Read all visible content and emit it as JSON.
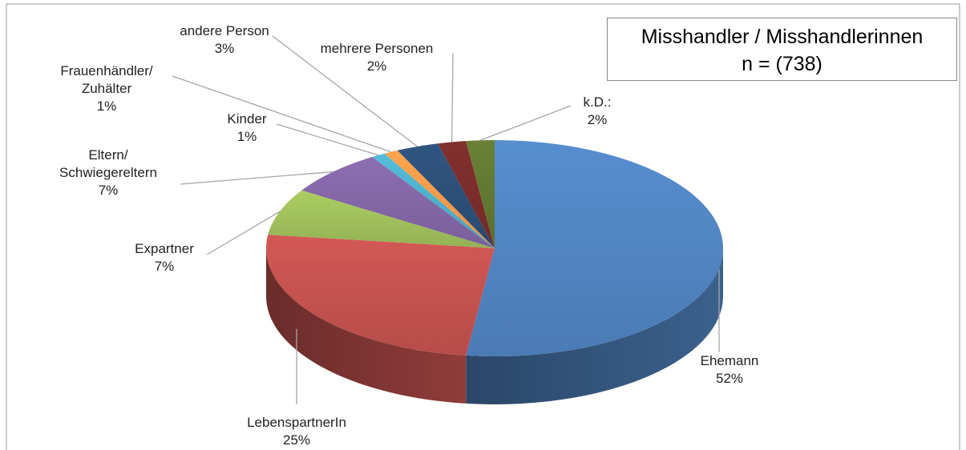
{
  "chart_data": {
    "type": "pie3d",
    "title": "Misshandler / Misshandlerinnen",
    "subtitle": "n = (738)",
    "categories": [
      "Ehemann",
      "LebenspartnerIn",
      "Expartner",
      "Eltern/\nSchwiegereltern",
      "Kinder",
      "Frauenhändler/\nZuhälter",
      "andere Person",
      "mehrere Personen",
      "k.D.:"
    ],
    "values": [
      52,
      25,
      7,
      7,
      1,
      1,
      3,
      2,
      2
    ],
    "value_labels": [
      "52%",
      "25%",
      "7%",
      "7%",
      "1%",
      "1%",
      "3%",
      "2%",
      "2%"
    ],
    "colors": [
      "#4f81bd",
      "#c0504d",
      "#9bbb59",
      "#8064a2",
      "#4bacc6",
      "#f79646",
      "#2c4d75",
      "#772c2a",
      "#5f7530"
    ]
  }
}
